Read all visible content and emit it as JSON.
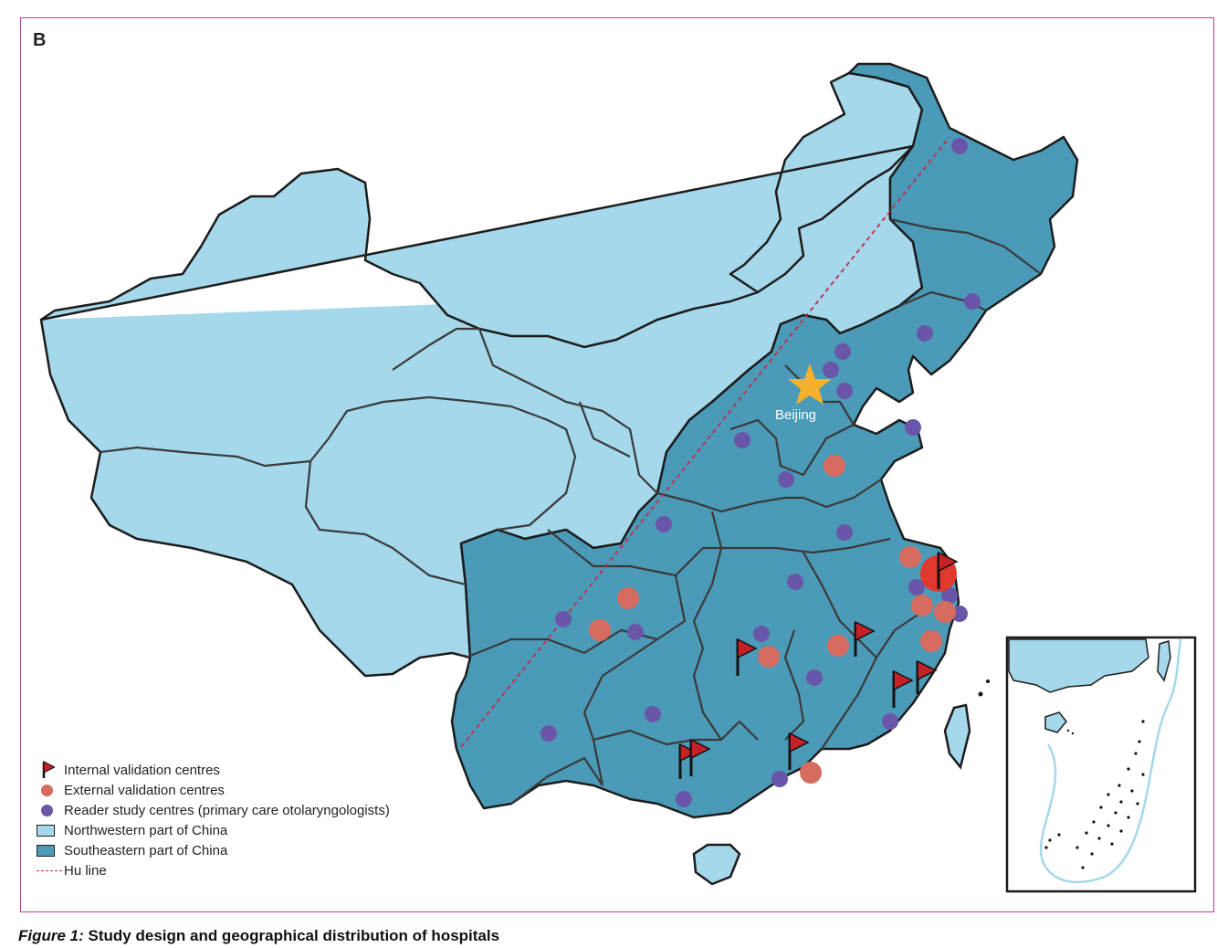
{
  "panel": {
    "letter": "B"
  },
  "capital": {
    "label": "Beijing"
  },
  "legend": {
    "internal": "Internal validation centres",
    "external": "External validation centres",
    "reader": "Reader study centres (primary care otolaryngologists)",
    "northwest": "Northwestern part of China",
    "southeast": "Southeastern part of China",
    "huline": "Hu line"
  },
  "caption": {
    "figure": "Figure 1:",
    "title": "Study design and geographical distribution of hospitals"
  },
  "colors": {
    "northwest": "#a4d8ea",
    "southeast": "#4b9bb8",
    "internal_flag": "#c42026",
    "external": "#d66b5f",
    "reader": "#6a56a8",
    "hu_line": "#c42a4a",
    "star": "#f6b12c",
    "frame": "#b0468f"
  }
}
